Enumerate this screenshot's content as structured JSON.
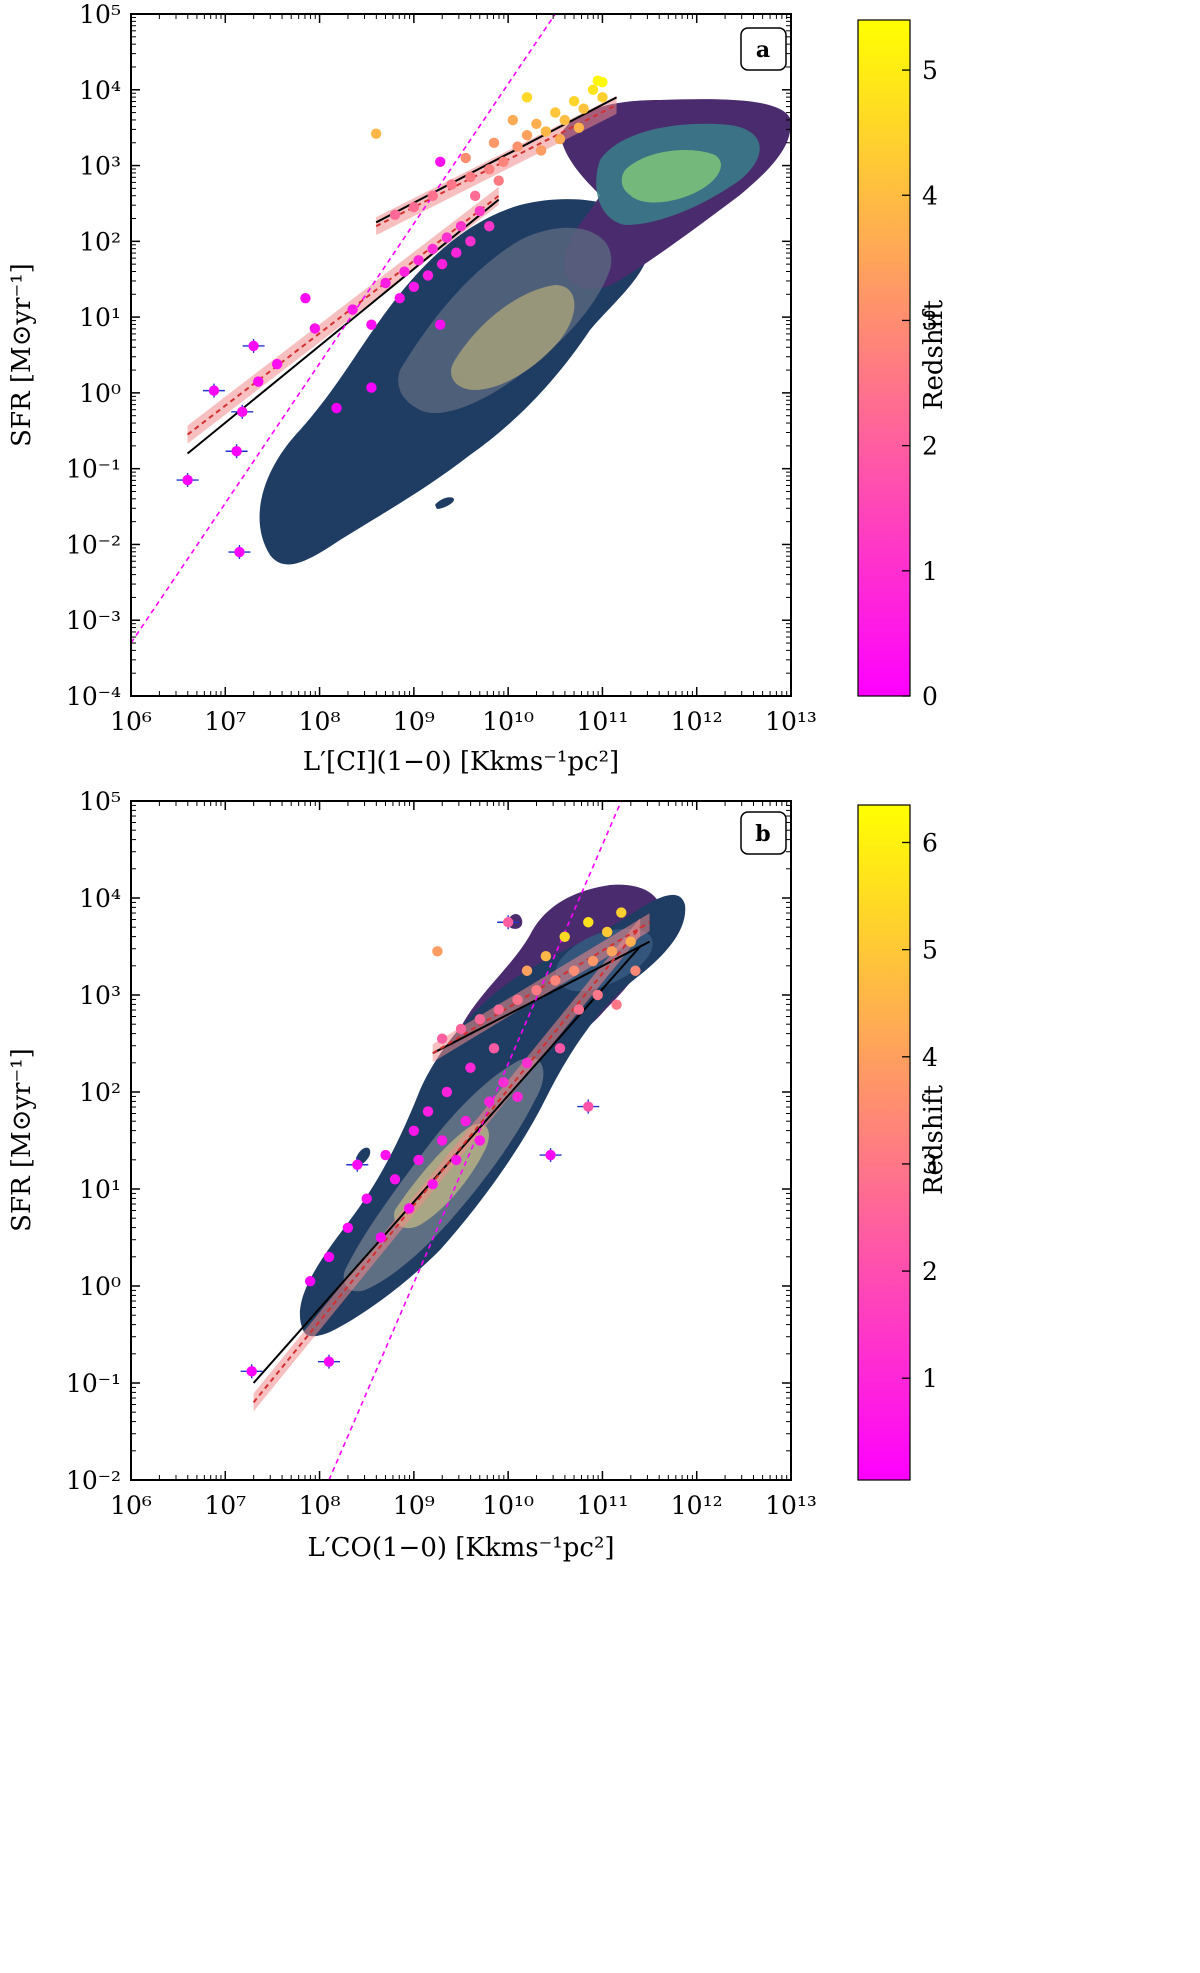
{
  "chart_data": [
    {
      "type": "scatter",
      "panel_label": "a",
      "xlabel": "L′[CI](1−0) [Kkms⁻¹pc²]",
      "ylabel": "SFR [M⊙yr⁻¹]",
      "x_scale": "log",
      "y_scale": "log",
      "xlim_exp": [
        6,
        13
      ],
      "ylim_exp": [
        -4,
        5
      ],
      "x_ticks": [
        "10⁶",
        "10⁷",
        "10⁸",
        "10⁹",
        "10¹⁰",
        "10¹¹",
        "10¹²",
        "10¹³"
      ],
      "y_ticks": [
        "10⁻⁴",
        "10⁻³",
        "10⁻²",
        "10⁻¹",
        "10⁰",
        "10¹",
        "10²",
        "10³",
        "10⁴",
        "10⁵"
      ],
      "colorbar": {
        "label": "Redshift",
        "range": [
          0,
          5.4
        ],
        "ticks": [
          "0",
          "1",
          "2",
          "3",
          "4",
          "5"
        ]
      },
      "legend": "none",
      "series": [
        {
          "name": "low-z fit (black)",
          "x_log": [
            6.6,
            9.9
          ],
          "y_log": [
            -0.8,
            2.55
          ]
        },
        {
          "name": "high-z fit (black)",
          "x_log": [
            8.6,
            11.15
          ],
          "y_log": [
            2.25,
            3.9
          ]
        },
        {
          "name": "reference relation (magenta dashed)",
          "x_log": [
            6.0,
            10.5
          ],
          "y_log": [
            -3.3,
            5.0
          ]
        },
        {
          "name": "low-z fit (red dashed)",
          "x_log": [
            6.6,
            9.9
          ],
          "y_log": [
            -0.55,
            2.6
          ]
        },
        {
          "name": "high-z fit (red dashed)",
          "x_log": [
            8.6,
            11.15
          ],
          "y_log": [
            2.2,
            3.8
          ]
        },
        {
          "name": "galaxies",
          "points": [
            {
              "x": 6.6,
              "y": -1.15,
              "z": 0.0
            },
            {
              "x": 6.88,
              "y": 0.03,
              "z": 0.1
            },
            {
              "x": 7.12,
              "y": -0.77,
              "z": 0.0
            },
            {
              "x": 7.15,
              "y": -2.1,
              "z": 0.0
            },
            {
              "x": 7.3,
              "y": 0.62,
              "z": 0.2
            },
            {
              "x": 7.18,
              "y": -0.25,
              "z": 0.3
            },
            {
              "x": 7.85,
              "y": 1.25,
              "z": 0.2
            },
            {
              "x": 8.18,
              "y": -0.2,
              "z": 0.0
            },
            {
              "x": 8.55,
              "y": 0.07,
              "z": 0.0
            },
            {
              "x": 9.28,
              "y": 3.05,
              "z": 0.4
            },
            {
              "x": 9.28,
              "y": 0.9,
              "z": 0.3
            },
            {
              "x": 8.6,
              "y": 3.42,
              "z": 3.9
            },
            {
              "x": 7.55,
              "y": 0.38,
              "z": 0.3
            },
            {
              "x": 7.35,
              "y": 0.15,
              "z": 0.2
            },
            {
              "x": 7.95,
              "y": 0.85,
              "z": 0.4
            },
            {
              "x": 8.35,
              "y": 1.1,
              "z": 0.5
            },
            {
              "x": 8.55,
              "y": 0.9,
              "z": 0.3
            },
            {
              "x": 8.7,
              "y": 1.45,
              "z": 0.6
            },
            {
              "x": 8.85,
              "y": 1.25,
              "z": 0.4
            },
            {
              "x": 8.9,
              "y": 1.6,
              "z": 0.7
            },
            {
              "x": 9.0,
              "y": 1.4,
              "z": 0.5
            },
            {
              "x": 9.05,
              "y": 1.75,
              "z": 0.8
            },
            {
              "x": 9.15,
              "y": 1.55,
              "z": 0.6
            },
            {
              "x": 9.2,
              "y": 1.9,
              "z": 0.9
            },
            {
              "x": 9.3,
              "y": 1.7,
              "z": 0.7
            },
            {
              "x": 9.35,
              "y": 2.05,
              "z": 1.0
            },
            {
              "x": 9.45,
              "y": 1.85,
              "z": 0.8
            },
            {
              "x": 9.5,
              "y": 2.2,
              "z": 1.1
            },
            {
              "x": 9.6,
              "y": 2.0,
              "z": 1.0
            },
            {
              "x": 9.7,
              "y": 2.4,
              "z": 1.2
            },
            {
              "x": 9.8,
              "y": 2.2,
              "z": 1.1
            },
            {
              "x": 8.8,
              "y": 2.35,
              "z": 2.2
            },
            {
              "x": 9.0,
              "y": 2.45,
              "z": 2.3
            },
            {
              "x": 9.2,
              "y": 2.6,
              "z": 2.4
            },
            {
              "x": 9.4,
              "y": 2.75,
              "z": 2.5
            },
            {
              "x": 9.6,
              "y": 2.85,
              "z": 2.6
            },
            {
              "x": 9.8,
              "y": 2.95,
              "z": 2.7
            },
            {
              "x": 9.95,
              "y": 3.05,
              "z": 2.8
            },
            {
              "x": 10.1,
              "y": 3.25,
              "z": 3.1
            },
            {
              "x": 10.2,
              "y": 3.4,
              "z": 3.4
            },
            {
              "x": 10.3,
              "y": 3.55,
              "z": 3.7
            },
            {
              "x": 10.4,
              "y": 3.45,
              "z": 3.9
            },
            {
              "x": 10.5,
              "y": 3.7,
              "z": 4.2
            },
            {
              "x": 10.6,
              "y": 3.6,
              "z": 4.0
            },
            {
              "x": 10.7,
              "y": 3.85,
              "z": 4.5
            },
            {
              "x": 10.8,
              "y": 3.75,
              "z": 4.1
            },
            {
              "x": 10.9,
              "y": 4.0,
              "z": 4.8
            },
            {
              "x": 11.0,
              "y": 3.9,
              "z": 4.4
            },
            {
              "x": 10.35,
              "y": 3.2,
              "z": 3.3
            },
            {
              "x": 10.55,
              "y": 3.35,
              "z": 3.6
            },
            {
              "x": 10.75,
              "y": 3.5,
              "z": 3.8
            },
            {
              "x": 10.95,
              "y": 4.12,
              "z": 5.2
            },
            {
              "x": 11.0,
              "y": 4.1,
              "z": 5.3
            },
            {
              "x": 10.2,
              "y": 3.9,
              "z": 4.6
            },
            {
              "x": 9.55,
              "y": 3.1,
              "z": 3.0
            },
            {
              "x": 9.85,
              "y": 3.3,
              "z": 3.2
            },
            {
              "x": 10.05,
              "y": 3.6,
              "z": 3.6
            },
            {
              "x": 9.65,
              "y": 2.6,
              "z": 2.3
            },
            {
              "x": 9.9,
              "y": 2.8,
              "z": 2.6
            }
          ]
        }
      ]
    },
    {
      "type": "scatter",
      "panel_label": "b",
      "xlabel": "L′CO(1−0) [Kkms⁻¹pc²]",
      "ylabel": "SFR [M⊙yr⁻¹]",
      "x_scale": "log",
      "y_scale": "log",
      "xlim_exp": [
        6,
        13
      ],
      "ylim_exp": [
        -2,
        5
      ],
      "x_ticks": [
        "10⁶",
        "10⁷",
        "10⁸",
        "10⁹",
        "10¹⁰",
        "10¹¹",
        "10¹²",
        "10¹³"
      ],
      "y_ticks": [
        "10⁻²",
        "10⁻¹",
        "10⁰",
        "10¹",
        "10²",
        "10³",
        "10⁴",
        "10⁵"
      ],
      "colorbar": {
        "label": "Redshift",
        "range": [
          0.05,
          6.35
        ],
        "ticks": [
          "1",
          "2",
          "3",
          "4",
          "5",
          "6"
        ]
      },
      "legend": "none",
      "series": [
        {
          "name": "low-z fit (black)",
          "x_log": [
            7.3,
            11.4
          ],
          "y_log": [
            -1.0,
            3.5
          ]
        },
        {
          "name": "high-z fit (black)",
          "x_log": [
            9.2,
            11.5
          ],
          "y_log": [
            2.4,
            3.55
          ]
        },
        {
          "name": "reference relation (magenta dashed)",
          "x_log": [
            8.1,
            11.2
          ],
          "y_log": [
            -2.0,
            5.0
          ]
        },
        {
          "name": "low-z fit (red dashed)",
          "x_log": [
            7.3,
            11.4
          ],
          "y_log": [
            -1.2,
            3.7
          ]
        },
        {
          "name": "high-z fit (red dashed)",
          "x_log": [
            9.2,
            11.5
          ],
          "y_log": [
            2.4,
            3.75
          ]
        },
        {
          "name": "galaxies",
          "points": [
            {
              "x": 7.28,
              "y": -0.88,
              "z": 0.1
            },
            {
              "x": 8.1,
              "y": -0.78,
              "z": 0.1
            },
            {
              "x": 8.4,
              "y": 1.25,
              "z": 0.3
            },
            {
              "x": 10.45,
              "y": 1.35,
              "z": 0.3
            },
            {
              "x": 10.85,
              "y": 1.85,
              "z": 2.1
            },
            {
              "x": 10.0,
              "y": 3.75,
              "z": 2.4
            },
            {
              "x": 9.25,
              "y": 3.45,
              "z": 3.9
            },
            {
              "x": 7.9,
              "y": 0.05,
              "z": 0.2
            },
            {
              "x": 8.1,
              "y": 0.3,
              "z": 0.2
            },
            {
              "x": 8.3,
              "y": 0.6,
              "z": 0.3
            },
            {
              "x": 8.5,
              "y": 0.9,
              "z": 0.4
            },
            {
              "x": 8.65,
              "y": 0.5,
              "z": 0.3
            },
            {
              "x": 8.8,
              "y": 1.1,
              "z": 0.5
            },
            {
              "x": 8.95,
              "y": 0.8,
              "z": 0.4
            },
            {
              "x": 9.05,
              "y": 1.3,
              "z": 0.6
            },
            {
              "x": 9.2,
              "y": 1.05,
              "z": 0.5
            },
            {
              "x": 9.3,
              "y": 1.5,
              "z": 0.7
            },
            {
              "x": 9.45,
              "y": 1.3,
              "z": 0.6
            },
            {
              "x": 9.55,
              "y": 1.7,
              "z": 0.8
            },
            {
              "x": 9.7,
              "y": 1.5,
              "z": 0.7
            },
            {
              "x": 9.8,
              "y": 1.9,
              "z": 0.9
            },
            {
              "x": 9.95,
              "y": 2.1,
              "z": 1.1
            },
            {
              "x": 10.1,
              "y": 1.95,
              "z": 1.0
            },
            {
              "x": 10.2,
              "y": 2.3,
              "z": 1.2
            },
            {
              "x": 9.0,
              "y": 1.6,
              "z": 0.6
            },
            {
              "x": 9.15,
              "y": 1.8,
              "z": 0.8
            },
            {
              "x": 9.35,
              "y": 2.0,
              "z": 0.9
            },
            {
              "x": 9.6,
              "y": 2.25,
              "z": 1.0
            },
            {
              "x": 8.7,
              "y": 1.35,
              "z": 0.5
            },
            {
              "x": 9.3,
              "y": 2.55,
              "z": 2.4
            },
            {
              "x": 9.5,
              "y": 2.65,
              "z": 2.5
            },
            {
              "x": 9.7,
              "y": 2.75,
              "z": 2.6
            },
            {
              "x": 9.9,
              "y": 2.85,
              "z": 2.7
            },
            {
              "x": 10.1,
              "y": 2.95,
              "z": 2.9
            },
            {
              "x": 10.3,
              "y": 3.05,
              "z": 3.1
            },
            {
              "x": 10.5,
              "y": 3.15,
              "z": 3.3
            },
            {
              "x": 10.7,
              "y": 3.25,
              "z": 3.5
            },
            {
              "x": 10.9,
              "y": 3.35,
              "z": 3.8
            },
            {
              "x": 11.1,
              "y": 3.45,
              "z": 4.1
            },
            {
              "x": 11.3,
              "y": 3.55,
              "z": 4.4
            },
            {
              "x": 10.4,
              "y": 3.4,
              "z": 4.6
            },
            {
              "x": 10.6,
              "y": 3.6,
              "z": 5.4
            },
            {
              "x": 10.85,
              "y": 3.75,
              "z": 5.6
            },
            {
              "x": 11.05,
              "y": 3.65,
              "z": 5.0
            },
            {
              "x": 11.2,
              "y": 3.85,
              "z": 5.2
            },
            {
              "x": 10.2,
              "y": 3.25,
              "z": 4.0
            },
            {
              "x": 10.95,
              "y": 3.0,
              "z": 3.0
            },
            {
              "x": 11.35,
              "y": 3.25,
              "z": 3.4
            },
            {
              "x": 10.75,
              "y": 2.85,
              "z": 2.8
            },
            {
              "x": 10.55,
              "y": 2.45,
              "z": 2.2
            },
            {
              "x": 9.85,
              "y": 2.45,
              "z": 2.3
            },
            {
              "x": 11.15,
              "y": 2.9,
              "z": 3.0
            }
          ]
        }
      ]
    }
  ]
}
